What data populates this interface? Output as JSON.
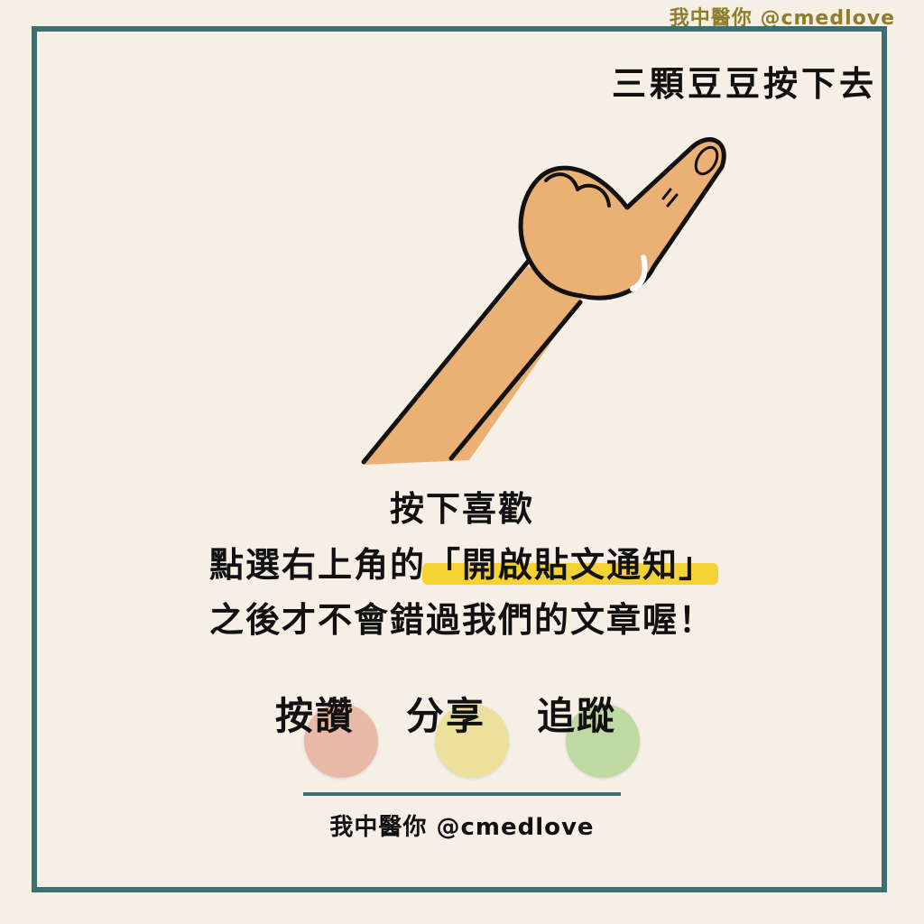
{
  "watermark": "我中醫你 @cmedlove",
  "title": "三顆豆豆按下去",
  "lines": [
    "按下喜歡",
    "點選右上角的",
    "「開啟貼文通知」",
    "之後才不會錯過我們的文章喔！"
  ],
  "actions": [
    {
      "label": "按讚",
      "color": "#e9b9a7"
    },
    {
      "label": "分享",
      "color": "#ece09c"
    },
    {
      "label": "追蹤",
      "color": "#bfd9a2"
    }
  ],
  "footer": "我中醫你 @cmedlove",
  "colors": {
    "background": "#f6efe5",
    "frame": "#3d6e72",
    "highlight": "#f4d234",
    "skin": "#ebb073",
    "watermark": "#8d7d2d"
  }
}
